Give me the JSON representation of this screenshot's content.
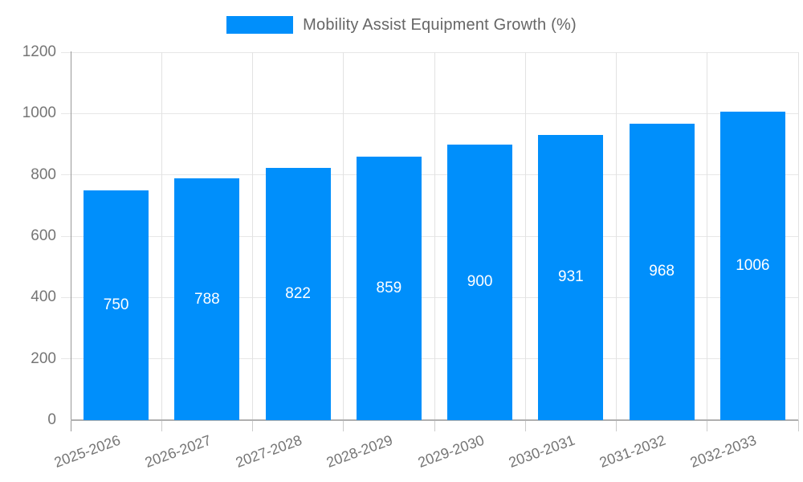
{
  "chart_data": {
    "type": "bar",
    "title": "Mobility Assist Equipment Growth (%)",
    "legend": {
      "position": "top",
      "entries": [
        {
          "label": "Mobility Assist Equipment Growth (%)",
          "swatch_color": "#008FFB"
        }
      ]
    },
    "categories": [
      "2025-2026",
      "2026-2027",
      "2027-2028",
      "2028-2029",
      "2029-2030",
      "2030-2031",
      "2031-2032",
      "2032-2033"
    ],
    "values": [
      750,
      788,
      822,
      859,
      900,
      931,
      968,
      1006
    ],
    "bar_value_labels": [
      "750",
      "788",
      "822",
      "859",
      "900",
      "931",
      "968",
      "1006"
    ],
    "xlabel": "",
    "ylabel": "",
    "ylim": [
      0,
      1200
    ],
    "yticks": [
      0,
      200,
      400,
      600,
      800,
      1000,
      1200
    ],
    "grid": {
      "horizontal": true,
      "vertical": true
    },
    "colors": {
      "bar": "#008FFB",
      "bar_value_text": "#ffffff",
      "gridline": "#e7e7e7",
      "vertical_gridline": "#e2e2e2",
      "y_axis_line": "#999999",
      "x_axis_line": "#b0b0b0",
      "tick": "#cccccc",
      "axis_label_text": "#757575",
      "legend_text": "#666666"
    }
  }
}
